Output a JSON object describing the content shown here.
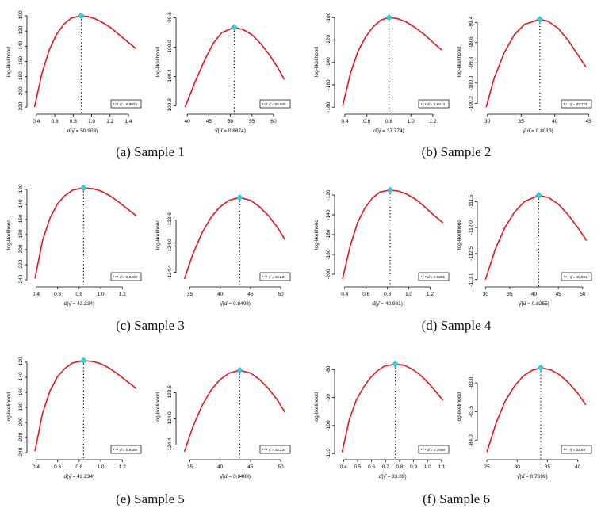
{
  "figure": {
    "captions": [
      "(a) Sample 1",
      "(b) Sample 2",
      "(c) Sample 3",
      "(d) Sample 4",
      "(e) Sample 5",
      "(f) Sample 6"
    ]
  },
  "colors": {
    "curve": "#e8141b",
    "peak": "#2fd3e0",
    "axis": "#000000",
    "vline": "#000000"
  },
  "chart_data": [
    {
      "type": "line",
      "panel": "a-left",
      "ylabel": "log-likelihood",
      "xlabel": "α̂(γ̂ = 50.908)",
      "x_range": [
        0.35,
        1.52
      ],
      "x_ticks": [
        0.4,
        0.6,
        0.8,
        1.0,
        1.2,
        1.4
      ],
      "x_tick_labels": [
        "0.4",
        "0.6",
        "0.8",
        "1.0",
        "1.2",
        "1.4"
      ],
      "y_range": [
        -223,
        -98
      ],
      "y_ticks": [
        -100,
        -120,
        -140,
        -160,
        -180,
        -200,
        -220
      ],
      "y_tick_labels": [
        "-100",
        "-120",
        "-140",
        "-160",
        "-180",
        "-200",
        "-220"
      ],
      "curve_x": [
        0.38,
        0.46,
        0.54,
        0.62,
        0.7,
        0.78,
        0.8874,
        0.96,
        1.04,
        1.12,
        1.2,
        1.28,
        1.36,
        1.44,
        1.48
      ],
      "curve_y": [
        -220,
        -176,
        -145,
        -124,
        -111,
        -103,
        -100,
        -101,
        -104,
        -109,
        -115,
        -123,
        -131,
        -139,
        -143
      ],
      "peak_x": 0.8874,
      "peak_y": -100,
      "legend": "α̂ = 0.8874"
    },
    {
      "type": "line",
      "panel": "a-right",
      "ylabel": "log-likelihood",
      "xlabel": "γ̂(α̂ = 0.8874)",
      "x_range": [
        38.5,
        63.5
      ],
      "x_ticks": [
        40,
        45,
        50,
        55,
        60
      ],
      "x_tick_labels": [
        "40",
        "45",
        "50",
        "55",
        "60"
      ],
      "y_range": [
        -100.85,
        -99.55
      ],
      "y_ticks": [
        -99.6,
        -100.0,
        -100.4,
        -100.8
      ],
      "y_tick_labels": [
        "-99.6",
        "-100.0",
        "-100.4",
        "-100.8"
      ],
      "curve_x": [
        39.5,
        42,
        44,
        46,
        48,
        50.908,
        53,
        55,
        57,
        59,
        61,
        62.5
      ],
      "curve_y": [
        -100.82,
        -100.45,
        -100.18,
        -99.95,
        -99.8,
        -99.73,
        -99.76,
        -99.83,
        -99.95,
        -100.1,
        -100.28,
        -100.44
      ],
      "peak_x": 50.908,
      "peak_y": -99.73,
      "legend": "γ̂ = 50.908"
    },
    {
      "type": "line",
      "panel": "b-left",
      "ylabel": "log-likelihood",
      "xlabel": "α̂(γ̂ = 37.774)",
      "x_range": [
        0.35,
        1.33
      ],
      "x_ticks": [
        0.4,
        0.6,
        0.8,
        1.0,
        1.2
      ],
      "x_tick_labels": [
        "0.4",
        "0.6",
        "0.8",
        "1.0",
        "1.2"
      ],
      "y_range": [
        -182,
        -97
      ],
      "y_ticks": [
        -100,
        -120,
        -140,
        -160,
        -180
      ],
      "y_tick_labels": [
        "-100",
        "-120",
        "-140",
        "-160",
        "-180"
      ],
      "curve_x": [
        0.38,
        0.45,
        0.52,
        0.59,
        0.66,
        0.73,
        0.8013,
        0.88,
        0.96,
        1.04,
        1.12,
        1.2,
        1.28
      ],
      "curve_y": [
        -179,
        -150,
        -130,
        -117,
        -108,
        -102,
        -100,
        -101,
        -104,
        -109,
        -115,
        -122,
        -129
      ],
      "peak_x": 0.8013,
      "peak_y": -100,
      "legend": "α̂ = 0.8013"
    },
    {
      "type": "line",
      "panel": "b-right",
      "ylabel": "log-likelihood",
      "xlabel": "γ̂(α̂ = 0.8013)",
      "x_range": [
        29.2,
        45.2
      ],
      "x_ticks": [
        30,
        35,
        40,
        45
      ],
      "x_tick_labels": [
        "30",
        "35",
        "40",
        "45"
      ],
      "y_range": [
        -100.26,
        -99.32
      ],
      "y_ticks": [
        -99.4,
        -99.6,
        -99.8,
        -100.0,
        -100.2
      ],
      "y_tick_labels": [
        "-99.4",
        "-99.6",
        "-99.8",
        "-100.0",
        "-100.2"
      ],
      "curve_x": [
        29.8,
        31,
        32.5,
        34,
        35.5,
        37.774,
        39,
        40.5,
        42,
        43.5,
        44.6
      ],
      "curve_y": [
        -100.24,
        -99.95,
        -99.7,
        -99.52,
        -99.42,
        -99.37,
        -99.39,
        -99.46,
        -99.58,
        -99.73,
        -99.84
      ],
      "peak_x": 37.774,
      "peak_y": -99.37,
      "legend": "γ̂ = 37.774"
    },
    {
      "type": "line",
      "panel": "c-left",
      "ylabel": "log-likelihood",
      "xlabel": "α̂(γ̂ = 43.234)",
      "x_range": [
        0.36,
        1.36
      ],
      "x_ticks": [
        0.4,
        0.6,
        0.8,
        1.0,
        1.2
      ],
      "x_tick_labels": [
        "0.4",
        "0.6",
        "0.8",
        "1.0",
        "1.2"
      ],
      "y_range": [
        -243,
        -117
      ],
      "y_ticks": [
        -120,
        -140,
        -160,
        -180,
        -200,
        -220,
        -240
      ],
      "y_tick_labels": [
        "-120",
        "-140",
        "-160",
        "-180",
        "-200",
        "-220",
        "-240"
      ],
      "curve_x": [
        0.39,
        0.46,
        0.53,
        0.6,
        0.67,
        0.74,
        0.8408,
        0.92,
        1.0,
        1.08,
        1.16,
        1.24,
        1.33
      ],
      "curve_y": [
        -238,
        -188,
        -158,
        -139,
        -128,
        -121,
        -118,
        -119,
        -122,
        -128,
        -136,
        -145,
        -155
      ],
      "peak_x": 0.8408,
      "peak_y": -118,
      "legend": "α̂ = 0.8408"
    },
    {
      "type": "line",
      "panel": "c-right",
      "ylabel": "log-likelihood",
      "xlabel": "γ̂(α̂ = 0.8408)",
      "x_range": [
        33.5,
        51.3
      ],
      "x_ticks": [
        35,
        40,
        45,
        50
      ],
      "x_tick_labels": [
        "35",
        "40",
        "45",
        "50"
      ],
      "y_range": [
        -124.55,
        -123.1
      ],
      "y_ticks": [
        -123.6,
        -124.0,
        -124.4
      ],
      "y_tick_labels": [
        "-123.6",
        "-124.0",
        "-124.4"
      ],
      "curve_x": [
        34.1,
        35.5,
        37,
        38.5,
        40,
        41.5,
        43.234,
        45,
        46.5,
        48,
        49.5,
        50.7
      ],
      "curve_y": [
        -124.5,
        -124.12,
        -123.8,
        -123.56,
        -123.4,
        -123.3,
        -123.26,
        -123.3,
        -123.4,
        -123.54,
        -123.72,
        -123.9
      ],
      "peak_x": 43.234,
      "peak_y": -123.26,
      "legend": "γ̂ = 43.234"
    },
    {
      "type": "line",
      "panel": "d-left",
      "ylabel": "log-likelihood",
      "xlabel": "α̂(γ̂ = 40.981)",
      "x_range": [
        0.35,
        1.36
      ],
      "x_ticks": [
        0.4,
        0.6,
        0.8,
        1.0,
        1.2
      ],
      "x_tick_labels": [
        "0.4",
        "0.6",
        "0.8",
        "1.0",
        "1.2"
      ],
      "y_range": [
        -208,
        -112
      ],
      "y_ticks": [
        -120,
        -140,
        -160,
        -180,
        -200
      ],
      "y_tick_labels": [
        "-120",
        "-140",
        "-160",
        "-180",
        "-200"
      ],
      "curve_x": [
        0.38,
        0.45,
        0.52,
        0.59,
        0.66,
        0.73,
        0.8255,
        0.9,
        0.98,
        1.06,
        1.14,
        1.22,
        1.32
      ],
      "curve_y": [
        -205,
        -172,
        -148,
        -133,
        -123,
        -117,
        -115,
        -116,
        -119,
        -124,
        -131,
        -139,
        -148
      ],
      "peak_x": 0.8255,
      "peak_y": -115,
      "legend": "α̂ = 0.8255"
    },
    {
      "type": "line",
      "panel": "d-right",
      "ylabel": "log-likelihood",
      "xlabel": "γ̂(α̂ = 0.8255)",
      "x_range": [
        29.3,
        51.5
      ],
      "x_ticks": [
        30,
        35,
        40,
        45,
        50
      ],
      "x_tick_labels": [
        "30",
        "35",
        "40",
        "45",
        "50"
      ],
      "y_range": [
        -113.05,
        -111.22
      ],
      "y_ticks": [
        -111.5,
        -112.0,
        -112.5,
        -113.0
      ],
      "y_tick_labels": [
        "-111.5",
        "-112.0",
        "-112.5",
        "-113.0"
      ],
      "curve_x": [
        30,
        32,
        34,
        36,
        38,
        40.981,
        43,
        45,
        47,
        49,
        50.8
      ],
      "curve_y": [
        -113.0,
        -112.42,
        -112.0,
        -111.7,
        -111.5,
        -111.38,
        -111.42,
        -111.55,
        -111.75,
        -112.0,
        -112.25
      ],
      "peak_x": 40.981,
      "peak_y": -111.38,
      "legend": "γ̂ = 40.981"
    },
    {
      "type": "line",
      "panel": "e-left",
      "ylabel": "log-likelihood",
      "xlabel": "α̂(γ̂ = 43.234)",
      "x_range": [
        0.36,
        1.36
      ],
      "x_ticks": [
        0.4,
        0.6,
        0.8,
        1.0,
        1.2
      ],
      "x_tick_labels": [
        "0.4",
        "0.6",
        "0.8",
        "1.0",
        "1.2"
      ],
      "y_range": [
        -243,
        -117
      ],
      "y_ticks": [
        -120,
        -140,
        -160,
        -180,
        -200,
        -220,
        -240
      ],
      "y_tick_labels": [
        "-120",
        "-140",
        "-160",
        "-180",
        "-200",
        "-220",
        "-240"
      ],
      "curve_x": [
        0.39,
        0.46,
        0.53,
        0.6,
        0.67,
        0.74,
        0.8408,
        0.92,
        1.0,
        1.08,
        1.16,
        1.24,
        1.33
      ],
      "curve_y": [
        -238,
        -188,
        -158,
        -139,
        -128,
        -121,
        -118,
        -119,
        -122,
        -128,
        -136,
        -145,
        -155
      ],
      "peak_x": 0.8408,
      "peak_y": -118,
      "legend": "α̂ = 0.8408"
    },
    {
      "type": "line",
      "panel": "e-right",
      "ylabel": "log-likelihood",
      "xlabel": "γ̂(α̂ = 0.8408)",
      "x_range": [
        33.5,
        51.3
      ],
      "x_ticks": [
        35,
        40,
        45,
        50
      ],
      "x_tick_labels": [
        "35",
        "40",
        "45",
        "50"
      ],
      "y_range": [
        -124.55,
        -123.1
      ],
      "y_ticks": [
        -123.6,
        -124.0,
        -124.4
      ],
      "y_tick_labels": [
        "-123.6",
        "-124.0",
        "-124.4"
      ],
      "curve_x": [
        34.1,
        35.5,
        37,
        38.5,
        40,
        41.5,
        43.234,
        45,
        46.5,
        48,
        49.5,
        50.7
      ],
      "curve_y": [
        -124.5,
        -124.12,
        -123.8,
        -123.56,
        -123.4,
        -123.3,
        -123.26,
        -123.3,
        -123.4,
        -123.54,
        -123.72,
        -123.9
      ],
      "peak_x": 43.234,
      "peak_y": -123.26,
      "legend": "γ̂ = 43.234"
    },
    {
      "type": "line",
      "panel": "f-left",
      "ylabel": "log-likelihood",
      "xlabel": "α̂(γ̂ = 33.89)",
      "x_range": [
        0.37,
        1.14
      ],
      "x_ticks": [
        0.4,
        0.5,
        0.6,
        0.7,
        0.8,
        0.9,
        1.0,
        1.1
      ],
      "x_tick_labels": [
        "0.4",
        "0.5",
        "0.6",
        "0.7",
        "0.8",
        "0.9",
        "1.0",
        "1.1"
      ],
      "y_range": [
        -110.5,
        -76.5
      ],
      "y_ticks": [
        -80,
        -90,
        -100,
        -110
      ],
      "y_tick_labels": [
        "-80",
        "-90",
        "-100",
        "-110"
      ],
      "curve_x": [
        0.39,
        0.44,
        0.49,
        0.54,
        0.59,
        0.64,
        0.69,
        0.7699,
        0.83,
        0.89,
        0.95,
        1.01,
        1.07,
        1.11
      ],
      "curve_y": [
        -109.5,
        -98,
        -91,
        -86.5,
        -83,
        -80.5,
        -78.8,
        -78,
        -78.4,
        -79.8,
        -82,
        -85,
        -88.5,
        -91
      ],
      "peak_x": 0.7699,
      "peak_y": -78,
      "legend": "α̂ = 0.7699"
    },
    {
      "type": "line",
      "panel": "f-right",
      "ylabel": "log-likelihood",
      "xlabel": "γ̂(α̂ = 0.7699)",
      "x_range": [
        24.2,
        42.0
      ],
      "x_ticks": [
        25,
        30,
        35,
        40
      ],
      "x_tick_labels": [
        "25",
        "30",
        "35",
        "40"
      ],
      "y_range": [
        -84.25,
        -82.6
      ],
      "y_ticks": [
        -83.0,
        -83.5,
        -84.0
      ],
      "y_tick_labels": [
        "-83.0",
        "-83.5",
        "-84.0"
      ],
      "curve_x": [
        25,
        26.5,
        28,
        29.5,
        31,
        32.5,
        33.89,
        35.5,
        37,
        38.5,
        40,
        41.3
      ],
      "curve_y": [
        -84.2,
        -83.7,
        -83.32,
        -83.06,
        -82.88,
        -82.78,
        -82.74,
        -82.77,
        -82.86,
        -83.0,
        -83.18,
        -83.38
      ],
      "peak_x": 33.89,
      "peak_y": -82.74,
      "legend": "γ̂ = 33.89"
    }
  ]
}
